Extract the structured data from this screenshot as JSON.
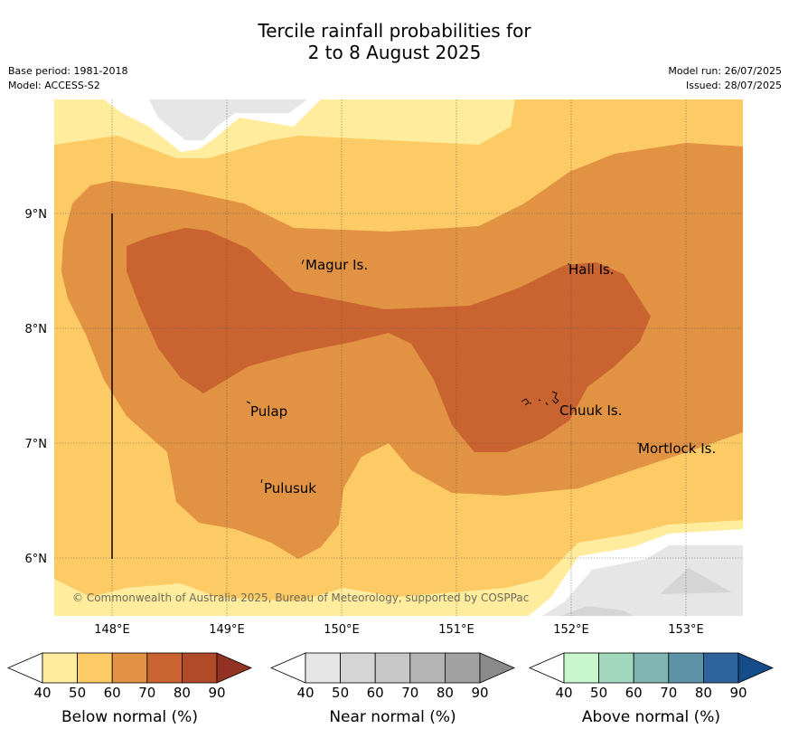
{
  "title_line1": "Tercile rainfall probabilities for",
  "title_line2": "2 to 8 August 2025",
  "base_period": "Base period: 1981-2018",
  "model": "Model: ACCESS-S2",
  "model_run": "Model run: 26/07/2025",
  "issued": "Issued: 28/07/2025",
  "copyright": "© Commonwealth of Australia 2025, Bureau of Meteorology, supported by COSPPac",
  "map": {
    "lon_range": [
      147.5,
      153.5
    ],
    "lat_range": [
      5.5,
      9.9
    ],
    "lon_ticks": [
      "148°E",
      "149°E",
      "150°E",
      "151°E",
      "152°E",
      "153°E"
    ],
    "lat_ticks": [
      "9°N",
      "8°N",
      "7°N",
      "6°N"
    ],
    "places": [
      {
        "name": "Magur Is."
      },
      {
        "name": "Hall Is."
      },
      {
        "name": "Pulap"
      },
      {
        "name": "Chuuk Is."
      },
      {
        "name": "Mortlock Is."
      },
      {
        "name": "Pulusuk"
      }
    ]
  },
  "colorbars": [
    {
      "label": "Below normal (%)",
      "ticks": [
        "40",
        "50",
        "60",
        "70",
        "80",
        "90"
      ],
      "colors": [
        "#ffec9c",
        "#fdcb65",
        "#e19242",
        "#c9632f",
        "#b04a28",
        "#923222"
      ]
    },
    {
      "label": "Near normal (%)",
      "ticks": [
        "40",
        "50",
        "60",
        "70",
        "80",
        "90"
      ],
      "colors": [
        "#e6e6e6",
        "#d5d5d5",
        "#c7c7c7",
        "#b4b4b4",
        "#a1a1a1",
        "#8a8a8a"
      ]
    },
    {
      "label": "Above normal (%)",
      "ticks": [
        "40",
        "50",
        "60",
        "70",
        "80",
        "90"
      ],
      "colors": [
        "#c8f7cd",
        "#a2d8bd",
        "#81b5b1",
        "#5e92a6",
        "#2f639b",
        "#134c89"
      ]
    }
  ]
}
